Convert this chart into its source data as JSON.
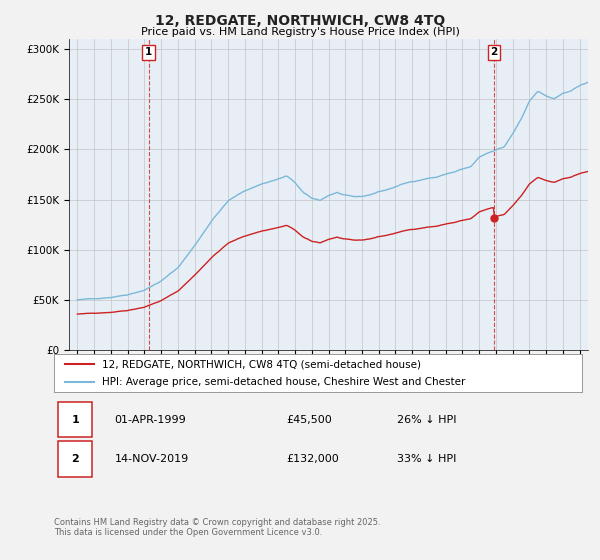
{
  "title": "12, REDGATE, NORTHWICH, CW8 4TQ",
  "subtitle": "Price paid vs. HM Land Registry's House Price Index (HPI)",
  "ylabel_ticks": [
    "£0",
    "£50K",
    "£100K",
    "£150K",
    "£200K",
    "£250K",
    "£300K"
  ],
  "ytick_values": [
    0,
    50000,
    100000,
    150000,
    200000,
    250000,
    300000
  ],
  "ylim": [
    0,
    310000
  ],
  "xlim_start": 1994.5,
  "xlim_end": 2025.5,
  "hpi_color": "#7ab8d9",
  "price_color": "#cc2222",
  "marker1_year": 1999.25,
  "marker1_price": 45500,
  "marker1_label": "1",
  "marker2_year": 2019.87,
  "marker2_price": 132000,
  "marker2_label": "2",
  "legend_line1": "12, REDGATE, NORTHWICH, CW8 4TQ (semi-detached house)",
  "legend_line2": "HPI: Average price, semi-detached house, Cheshire West and Chester",
  "annotation1_num": "1",
  "annotation1_date": "01-APR-1999",
  "annotation1_price": "£45,500",
  "annotation1_hpi": "26% ↓ HPI",
  "annotation2_num": "2",
  "annotation2_date": "14-NOV-2019",
  "annotation2_price": "£132,000",
  "annotation2_hpi": "33% ↓ HPI",
  "footer": "Contains HM Land Registry data © Crown copyright and database right 2025.\nThis data is licensed under the Open Government Licence v3.0.",
  "background_color": "#f2f2f2",
  "plot_bg_color": "#e8eef5"
}
